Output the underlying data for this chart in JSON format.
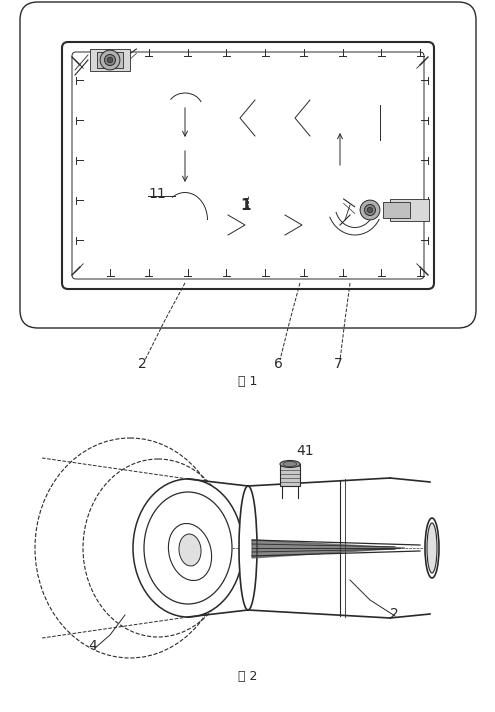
{
  "background_color": "#ffffff",
  "line_color": "#2a2a2a",
  "fig_width": 4.95,
  "fig_height": 7.12,
  "dpi": 100,
  "fig1_label": "图 1",
  "fig2_label": "图 2"
}
